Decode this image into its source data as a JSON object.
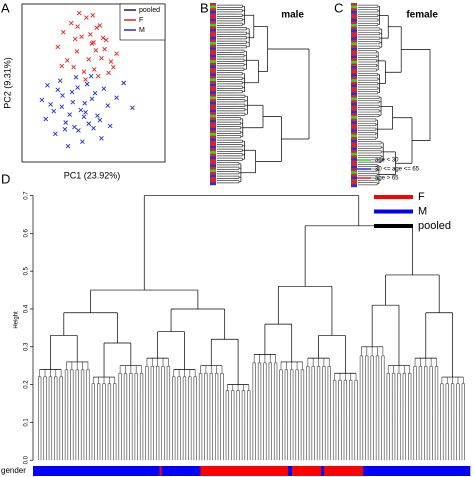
{
  "panels": {
    "a": "A",
    "b": "B",
    "c": "C",
    "d": "D"
  },
  "scatter": {
    "type": "scatter",
    "xlabel": "PC1 (23.92%)",
    "ylabel": "PC2 (9.31%)",
    "xlim": [
      -6,
      12
    ],
    "ylim": [
      -6,
      8
    ],
    "legend": [
      {
        "name": "pooled",
        "color": "#1b1b6b"
      },
      {
        "name": "F",
        "color": "#e8241e"
      },
      {
        "name": "M",
        "color": "#1f2fd8"
      }
    ],
    "series": [
      {
        "name": "F",
        "color": "#e8241e",
        "x": [
          -1.5,
          -0.8,
          0.2,
          0.9,
          1.5,
          2.1,
          2.8,
          3.4,
          4.0,
          4.6,
          5.2,
          5.9,
          0.5,
          1.2,
          2.4,
          3.1,
          3.8,
          4.4,
          -0.3,
          1.8,
          2.6,
          3.6,
          4.9,
          0.7,
          2.0,
          3.3,
          1.0,
          2.9,
          4.2,
          5.5,
          -1.0,
          3.0
        ],
        "y": [
          4.2,
          5.5,
          6.3,
          3.8,
          5.1,
          6.8,
          4.5,
          5.9,
          3.2,
          4.8,
          2.9,
          3.6,
          2.4,
          7.2,
          3.1,
          2.2,
          6.1,
          4.0,
          3.0,
          2.0,
          5.3,
          1.6,
          1.9,
          4.9,
          1.3,
          3.9,
          6.0,
          7.0,
          5.0,
          2.4,
          2.5,
          4.6
        ]
      },
      {
        "name": "M",
        "color": "#1f2fd8",
        "x": [
          -3.5,
          -2.8,
          -2.0,
          -1.2,
          -0.5,
          0.3,
          1.1,
          1.9,
          2.7,
          3.5,
          4.3,
          5.1,
          5.9,
          6.8,
          7.9,
          -3.0,
          -1.8,
          -0.9,
          0.0,
          0.8,
          1.6,
          2.4,
          3.2,
          4.0,
          4.8,
          -2.4,
          -1.5,
          -0.2,
          0.6,
          1.4,
          2.2,
          3.0,
          3.8,
          -1.0,
          0.4,
          1.8,
          2.8,
          -0.6,
          1.0,
          2.0
        ],
        "y": [
          -0.5,
          0.8,
          -1.5,
          1.2,
          -2.5,
          0.2,
          -3.2,
          -0.8,
          1.6,
          -1.9,
          0.5,
          -2.8,
          -0.3,
          1.0,
          -1.2,
          -2.2,
          -3.5,
          -0.1,
          -1.8,
          1.5,
          -4.2,
          -2.6,
          0.1,
          -3.9,
          -1.0,
          -0.9,
          0.4,
          -4.6,
          -2.9,
          -1.4,
          0.9,
          -3.0,
          -2.3,
          -1.1,
          -0.7,
          -2.0,
          -0.4,
          -3.1,
          0.6,
          -1.6
        ]
      }
    ]
  },
  "male": {
    "type": "dendrogram",
    "title": "male",
    "tree": [
      1.0,
      [
        0.55,
        [
          0.4,
          0.3,
          0.35
        ],
        [
          0.45,
          0.32,
          0.3
        ]
      ],
      [
        0.7,
        [
          0.5,
          0.33,
          0.28
        ],
        [
          0.42,
          0.3,
          0.26
        ]
      ]
    ]
  },
  "female": {
    "type": "dendrogram",
    "title": "female",
    "tree": [
      1.0,
      [
        0.6,
        [
          0.42,
          0.3,
          0.33
        ],
        [
          0.38,
          0.28,
          0.3
        ]
      ],
      [
        0.75,
        [
          0.48,
          0.32,
          0.27
        ],
        [
          0.52,
          0.35,
          0.29
        ]
      ]
    ]
  },
  "age_legend": [
    {
      "name": "age < 30",
      "color": "#22dd22"
    },
    {
      "name": "30 <= age <= 65",
      "color": "#2233dd"
    },
    {
      "name": "age > 65",
      "color": "#dd2222"
    }
  ],
  "gender_legend": [
    {
      "name": "F",
      "color": "#ff0000"
    },
    {
      "name": "M",
      "color": "#0000ff"
    },
    {
      "name": "pooled",
      "color": "#000000"
    }
  ],
  "dendrogram": {
    "type": "dendrogram",
    "ylabel": "Height",
    "ylim": [
      -0.01,
      0.72
    ],
    "yticks": [
      {
        "value": 0,
        "label": "0.0"
      },
      0.1,
      0.2,
      0.3,
      0.4,
      0.5,
      0.6,
      0.7
    ],
    "tree": [
      0.7,
      [
        0.45,
        [
          0.39,
          [
            0.33,
            0.24,
            0.26
          ],
          [
            0.31,
            0.22,
            0.25
          ]
        ],
        [
          0.4,
          [
            0.34,
            0.27,
            0.24
          ],
          [
            0.32,
            0.25,
            0.2
          ]
        ]
      ],
      [
        0.62,
        [
          0.46,
          [
            0.36,
            0.28,
            0.26
          ],
          [
            0.33,
            0.27,
            0.23
          ]
        ],
        [
          0.49,
          [
            0.41,
            0.3,
            0.25
          ],
          [
            0.39,
            0.27,
            0.22
          ]
        ]
      ]
    ],
    "bar_label": "gender",
    "gender_runs": {
      "codes": [
        "M",
        "F",
        "M",
        "F",
        "M",
        "F",
        "M",
        "F",
        "M"
      ],
      "counts": [
        130,
        2,
        40,
        90,
        4,
        30,
        3,
        40,
        110
      ]
    }
  }
}
